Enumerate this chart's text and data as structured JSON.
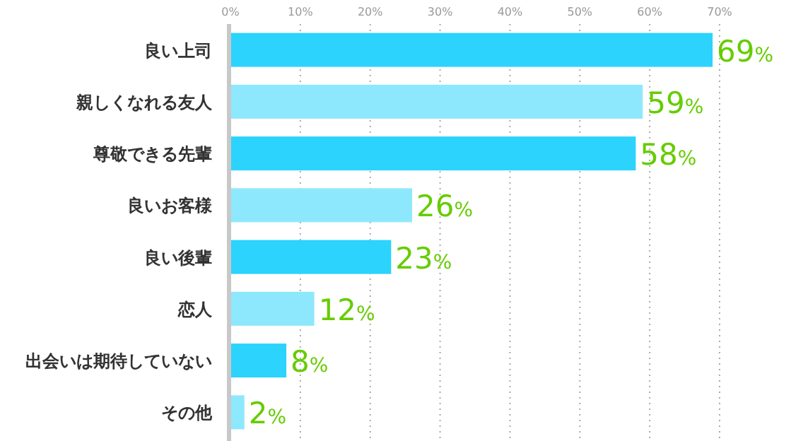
{
  "chart_data": {
    "type": "bar",
    "orientation": "horizontal",
    "categories": [
      "良い上司",
      "親しくなれる友人",
      "尊敬できる先輩",
      "良いお客様",
      "良い後輩",
      "恋人",
      "出会いは期待していない",
      "その他"
    ],
    "values": [
      69,
      59,
      58,
      26,
      23,
      12,
      8,
      2
    ],
    "colors": [
      "#2bd3fd",
      "#8ee8fd",
      "#2bd3fd",
      "#8ee8fd",
      "#2bd3fd",
      "#8ee8fd",
      "#2bd3fd",
      "#8ee8fd"
    ],
    "value_labels": [
      "69%",
      "59%",
      "58%",
      "26%",
      "23%",
      "12%",
      "8%",
      "2%"
    ],
    "xlim": [
      0,
      70
    ],
    "xticks": [
      {
        "value": 0,
        "label": "0%"
      },
      {
        "value": 10,
        "label": "10%"
      },
      {
        "value": 20,
        "label": "20%"
      },
      {
        "value": 30,
        "label": "30%"
      },
      {
        "value": 40,
        "label": "40%"
      },
      {
        "value": 50,
        "label": "50%"
      },
      {
        "value": 60,
        "label": "60%"
      },
      {
        "value": 70,
        "label": "70%"
      }
    ],
    "grid": "x"
  }
}
